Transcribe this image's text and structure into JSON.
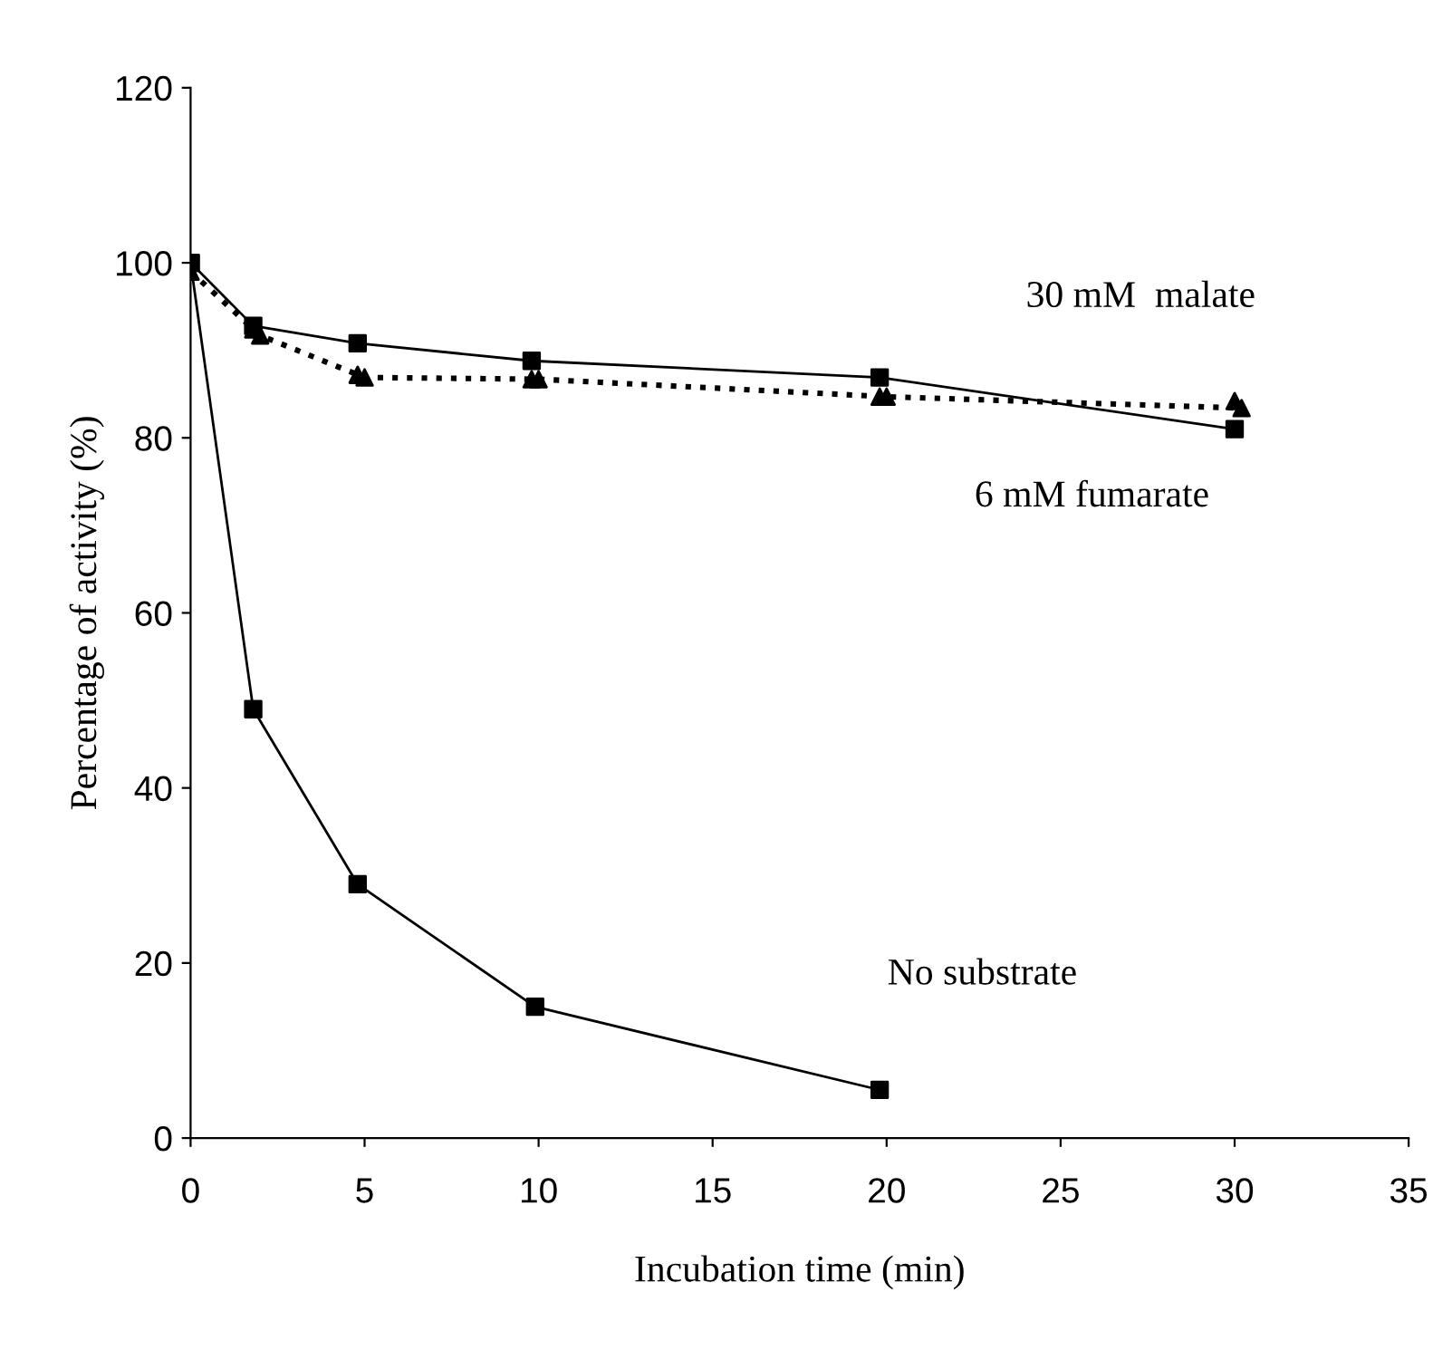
{
  "chart_data": {
    "type": "line",
    "xlabel": "Incubation time (min)",
    "ylabel": "Percentage of activity (%)",
    "xlim": [
      0,
      35
    ],
    "xticks": [
      0,
      5,
      10,
      15,
      20,
      25,
      30,
      35
    ],
    "ylim": [
      0,
      120
    ],
    "yticks": [
      0,
      20,
      40,
      60,
      80,
      100,
      120
    ],
    "grid": false,
    "legend": false,
    "series": [
      {
        "color": "#000000",
        "marker": "square",
        "line_style": "solid",
        "x": [
          0,
          1.8,
          4.8,
          9.8,
          19.8,
          30
        ],
        "values": [
          100,
          92.8,
          90.8,
          88.8,
          86.9,
          81
        ]
      },
      {
        "type": "scatter",
        "color": "#000000",
        "marker": "triangle",
        "x": [
          1.8,
          4.8,
          9.8,
          19.8,
          30
        ],
        "values": [
          92.4,
          87.2,
          86.7,
          84.7,
          84.2
        ]
      },
      {
        "color": "#000000",
        "marker": "triangle",
        "line_style": "dotted",
        "x": [
          0,
          2,
          5,
          10,
          20,
          30.2
        ],
        "values": [
          99,
          91.7,
          86.9,
          86.7,
          84.7,
          83.4
        ]
      },
      {
        "color": "#000000",
        "marker": "square",
        "line_style": "solid",
        "x": [
          0,
          1.8,
          4.8,
          9.9,
          19.8
        ],
        "values": [
          100,
          49,
          29,
          15,
          5.5
        ]
      }
    ],
    "annotations": [
      "30 mM  malate",
      "6 mM fumarate",
      "No substrate"
    ]
  }
}
